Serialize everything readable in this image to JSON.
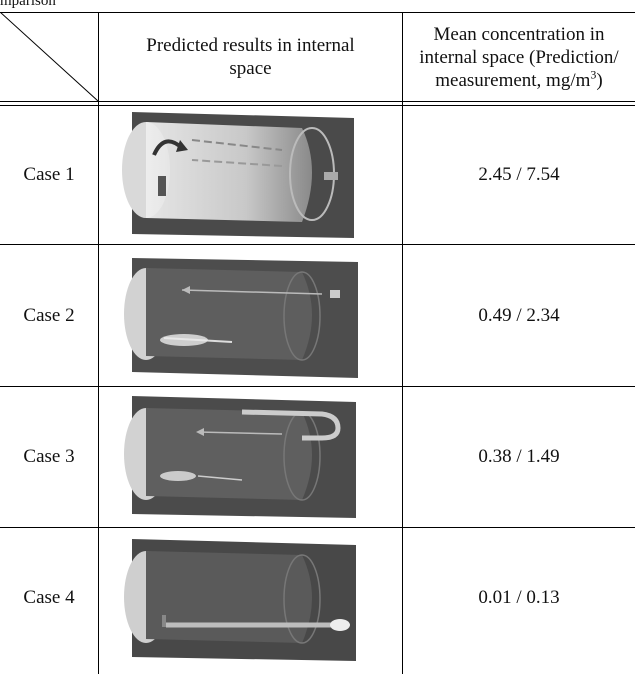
{
  "caption_fragment": "mparison",
  "header": {
    "col1": "Predicted results in internal space",
    "col2_line1": "Mean concentration in",
    "col2_line2": "internal space (Prediction/",
    "col2_line3_pre": "measurement, mg/m",
    "col2_line3_sup": "3",
    "col2_line3_post": ")"
  },
  "rows": [
    {
      "label": "Case 1",
      "value": "2.45 / 7.54",
      "image": "case-1-airflow-visualization"
    },
    {
      "label": "Case 2",
      "value": "0.49 / 2.34",
      "image": "case-2-airflow-visualization"
    },
    {
      "label": "Case 3",
      "value": "0.38 / 1.49",
      "image": "case-3-airflow-visualization"
    },
    {
      "label": "Case 4",
      "value": "0.01 / 0.13",
      "image": "case-4-airflow-visualization"
    }
  ]
}
